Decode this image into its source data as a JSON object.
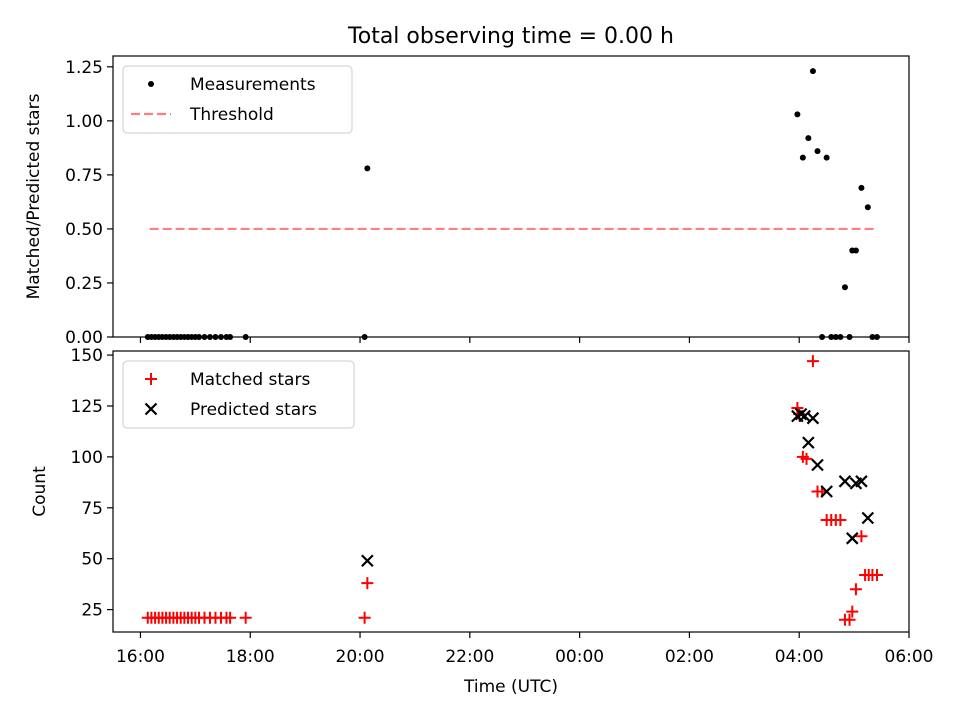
{
  "figure": {
    "title": "Total observing time = 0.00 h"
  },
  "colors": {
    "measurement": "#000000",
    "threshold": "#ff7f7f",
    "matched": "#ff0000",
    "predicted": "#000000"
  },
  "chart_data": [
    {
      "type": "scatter",
      "ylabel": "Matched/Predicted stars",
      "xlim": [
        "15:30",
        "06:00"
      ],
      "ylim": [
        0,
        1.3
      ],
      "yticks": [
        "0.00",
        "0.25",
        "0.50",
        "0.75",
        "1.00",
        "1.25"
      ],
      "legend": {
        "position": "top-left",
        "entries": [
          "Measurements",
          "Threshold"
        ]
      },
      "threshold": {
        "value": 0.5,
        "x_start": "16:10",
        "x_end": "05:25"
      },
      "series": [
        {
          "name": "Measurements",
          "points": [
            [
              "16:08",
              0
            ],
            [
              "16:12",
              0
            ],
            [
              "16:16",
              0
            ],
            [
              "16:20",
              0
            ],
            [
              "16:24",
              0
            ],
            [
              "16:28",
              0
            ],
            [
              "16:32",
              0
            ],
            [
              "16:36",
              0
            ],
            [
              "16:40",
              0
            ],
            [
              "16:44",
              0
            ],
            [
              "16:48",
              0
            ],
            [
              "16:52",
              0
            ],
            [
              "16:56",
              0
            ],
            [
              "17:00",
              0
            ],
            [
              "17:04",
              0
            ],
            [
              "17:10",
              0
            ],
            [
              "17:16",
              0
            ],
            [
              "17:22",
              0
            ],
            [
              "17:28",
              0
            ],
            [
              "17:34",
              0
            ],
            [
              "17:38",
              0
            ],
            [
              "17:55",
              0
            ],
            [
              "20:05",
              0
            ],
            [
              "20:08",
              0.78
            ],
            [
              "03:58",
              1.03
            ],
            [
              "04:04",
              0.83
            ],
            [
              "04:10",
              0.92
            ],
            [
              "04:15",
              1.23
            ],
            [
              "04:20",
              0.86
            ],
            [
              "04:30",
              0.83
            ],
            [
              "04:25",
              0
            ],
            [
              "04:35",
              0
            ],
            [
              "04:40",
              0
            ],
            [
              "04:45",
              0
            ],
            [
              "04:50",
              0.23
            ],
            [
              "04:55",
              0
            ],
            [
              "04:58",
              0.4
            ],
            [
              "05:02",
              0.4
            ],
            [
              "05:08",
              0.69
            ],
            [
              "05:15",
              0.6
            ],
            [
              "05:20",
              0
            ],
            [
              "05:25",
              0
            ]
          ]
        }
      ]
    },
    {
      "type": "scatter",
      "xlabel": "Time (UTC)",
      "ylabel": "Count",
      "xlim": [
        "15:30",
        "06:00"
      ],
      "ylim": [
        14,
        152
      ],
      "xticks": [
        "16:00",
        "18:00",
        "20:00",
        "22:00",
        "00:00",
        "02:00",
        "04:00",
        "06:00"
      ],
      "yticks": [
        "25",
        "50",
        "75",
        "100",
        "125",
        "150"
      ],
      "legend": {
        "position": "top-left",
        "entries": [
          "Matched stars",
          "Predicted stars"
        ]
      },
      "series": [
        {
          "name": "Matched stars",
          "marker": "plus",
          "points": [
            [
              "16:08",
              21
            ],
            [
              "16:12",
              21
            ],
            [
              "16:16",
              21
            ],
            [
              "16:20",
              21
            ],
            [
              "16:24",
              21
            ],
            [
              "16:28",
              21
            ],
            [
              "16:32",
              21
            ],
            [
              "16:36",
              21
            ],
            [
              "16:40",
              21
            ],
            [
              "16:44",
              21
            ],
            [
              "16:48",
              21
            ],
            [
              "16:52",
              21
            ],
            [
              "16:56",
              21
            ],
            [
              "17:00",
              21
            ],
            [
              "17:04",
              21
            ],
            [
              "17:10",
              21
            ],
            [
              "17:16",
              21
            ],
            [
              "17:22",
              21
            ],
            [
              "17:28",
              21
            ],
            [
              "17:34",
              21
            ],
            [
              "17:38",
              21
            ],
            [
              "17:55",
              21
            ],
            [
              "20:05",
              21
            ],
            [
              "20:08",
              38
            ],
            [
              "03:58",
              124
            ],
            [
              "04:00",
              121
            ],
            [
              "04:04",
              100
            ],
            [
              "04:08",
              99
            ],
            [
              "04:15",
              147
            ],
            [
              "04:20",
              83
            ],
            [
              "04:25",
              83
            ],
            [
              "04:30",
              69
            ],
            [
              "04:35",
              69
            ],
            [
              "04:40",
              69
            ],
            [
              "04:45",
              69
            ],
            [
              "04:50",
              20
            ],
            [
              "04:55",
              20
            ],
            [
              "04:58",
              24
            ],
            [
              "05:02",
              35
            ],
            [
              "05:08",
              61
            ],
            [
              "05:12",
              42
            ],
            [
              "05:16",
              42
            ],
            [
              "05:20",
              42
            ],
            [
              "05:25",
              42
            ]
          ]
        },
        {
          "name": "Predicted stars",
          "marker": "x",
          "points": [
            [
              "20:08",
              49
            ],
            [
              "03:58",
              120
            ],
            [
              "04:02",
              121
            ],
            [
              "04:06",
              120
            ],
            [
              "04:10",
              107
            ],
            [
              "04:15",
              119
            ],
            [
              "04:20",
              96
            ],
            [
              "04:30",
              83
            ],
            [
              "04:50",
              88
            ],
            [
              "04:58",
              60
            ],
            [
              "05:02",
              87
            ],
            [
              "05:08",
              88
            ],
            [
              "05:15",
              70
            ]
          ]
        }
      ]
    }
  ]
}
